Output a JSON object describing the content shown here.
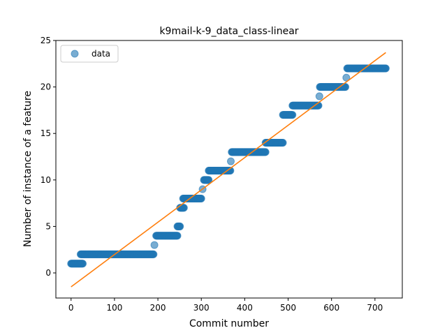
{
  "chart_data": {
    "type": "scatter",
    "title": "k9mail-k-9_data_class-linear",
    "xlabel": "Commit number",
    "ylabel": "Number of instance of a feature",
    "xlim": [
      -35,
      763
    ],
    "ylim": [
      -2.7,
      25
    ],
    "xticks": [
      0,
      100,
      200,
      300,
      400,
      500,
      600,
      700
    ],
    "yticks": [
      0,
      5,
      10,
      15,
      20,
      25
    ],
    "legend": {
      "placement": "top-left",
      "entries": [
        "data"
      ]
    },
    "colors": {
      "data": "#1f77b4",
      "fit": "#ff7f0e"
    },
    "series": [
      {
        "name": "data",
        "kind": "points",
        "segments": [
          {
            "x_from": 0,
            "x_to": 27,
            "y": 1
          },
          {
            "x_from": 22,
            "x_to": 190,
            "y": 2
          },
          {
            "x_from": 192,
            "x_to": 192,
            "y": 3
          },
          {
            "x_from": 196,
            "x_to": 245,
            "y": 4
          },
          {
            "x_from": 245,
            "x_to": 251,
            "y": 5
          },
          {
            "x_from": 251,
            "x_to": 260,
            "y": 7
          },
          {
            "x_from": 258,
            "x_to": 300,
            "y": 8
          },
          {
            "x_from": 303,
            "x_to": 303,
            "y": 9
          },
          {
            "x_from": 306,
            "x_to": 317,
            "y": 10
          },
          {
            "x_from": 317,
            "x_to": 367,
            "y": 11
          },
          {
            "x_from": 368,
            "x_to": 368,
            "y": 12
          },
          {
            "x_from": 370,
            "x_to": 448,
            "y": 13
          },
          {
            "x_from": 448,
            "x_to": 488,
            "y": 14
          },
          {
            "x_from": 488,
            "x_to": 510,
            "y": 17
          },
          {
            "x_from": 510,
            "x_to": 570,
            "y": 18
          },
          {
            "x_from": 572,
            "x_to": 572,
            "y": 19
          },
          {
            "x_from": 573,
            "x_to": 632,
            "y": 20
          },
          {
            "x_from": 634,
            "x_to": 634,
            "y": 21
          },
          {
            "x_from": 636,
            "x_to": 725,
            "y": 22
          }
        ]
      },
      {
        "name": "",
        "kind": "fit-line",
        "x": [
          0,
          725
        ],
        "y": [
          -1.5,
          23.7
        ]
      }
    ]
  }
}
